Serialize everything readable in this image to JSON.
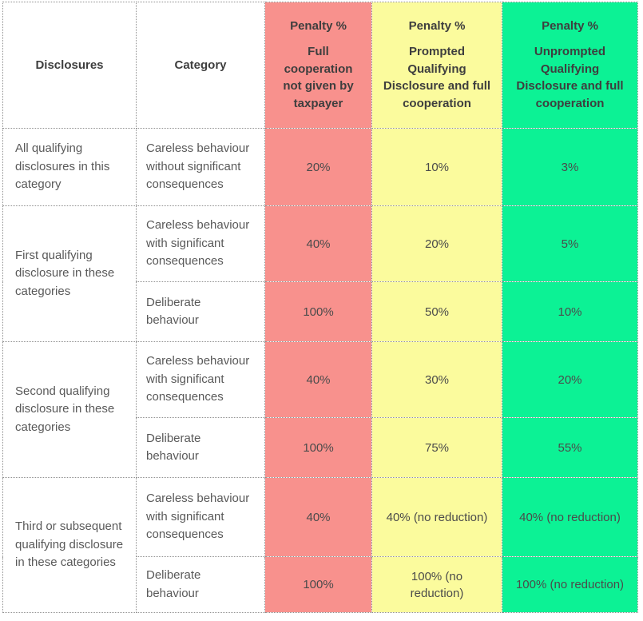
{
  "colors": {
    "red": "#F8918D",
    "yellow": "#FBFB9D",
    "green": "#0CF295",
    "border": "#909090",
    "header_text": "#3E3E3E",
    "body_text": "#595959"
  },
  "header": {
    "disclosures": "Disclosures",
    "category": "Category",
    "penalty_full": {
      "title": "Penalty %",
      "subtitle": "Full cooperation not given by taxpayer"
    },
    "penalty_prompted": {
      "title": "Penalty %",
      "subtitle": "Prompted Qualifying Disclosure and full cooperation"
    },
    "penalty_unprompted": {
      "title": "Penalty %",
      "subtitle": "Unprompted Qualifying Disclosure and full cooperation"
    }
  },
  "groups": [
    {
      "disclosure": "All qualifying disclosures in this category",
      "rows": [
        {
          "category": "Careless behaviour without significant consequences",
          "full_cooperation": "20%",
          "prompted": "10%",
          "unprompted": "3%"
        }
      ]
    },
    {
      "disclosure": "First qualifying disclosure in these categories",
      "rows": [
        {
          "category": "Careless behaviour with significant consequences",
          "full_cooperation": "40%",
          "prompted": "20%",
          "unprompted": "5%"
        },
        {
          "category": "Deliberate behaviour",
          "full_cooperation": "100%",
          "prompted": "50%",
          "unprompted": "10%"
        }
      ]
    },
    {
      "disclosure": "Second qualifying disclosure in these categories",
      "rows": [
        {
          "category": "Careless behaviour with significant consequences",
          "full_cooperation": "40%",
          "prompted": "30%",
          "unprompted": "20%"
        },
        {
          "category": "Deliberate behaviour",
          "full_cooperation": "100%",
          "prompted": "75%",
          "unprompted": "55%"
        }
      ]
    },
    {
      "disclosure": "Third or subsequent qualifying disclosure in these categories",
      "rows": [
        {
          "category": "Careless behaviour with significant consequences",
          "full_cooperation": "40%",
          "prompted": "40% (no reduction)",
          "unprompted": "40% (no reduction)"
        },
        {
          "category": "Deliberate behaviour",
          "full_cooperation": "100%",
          "prompted": "100% (no reduction)",
          "unprompted": "100% (no reduction)"
        }
      ]
    }
  ]
}
